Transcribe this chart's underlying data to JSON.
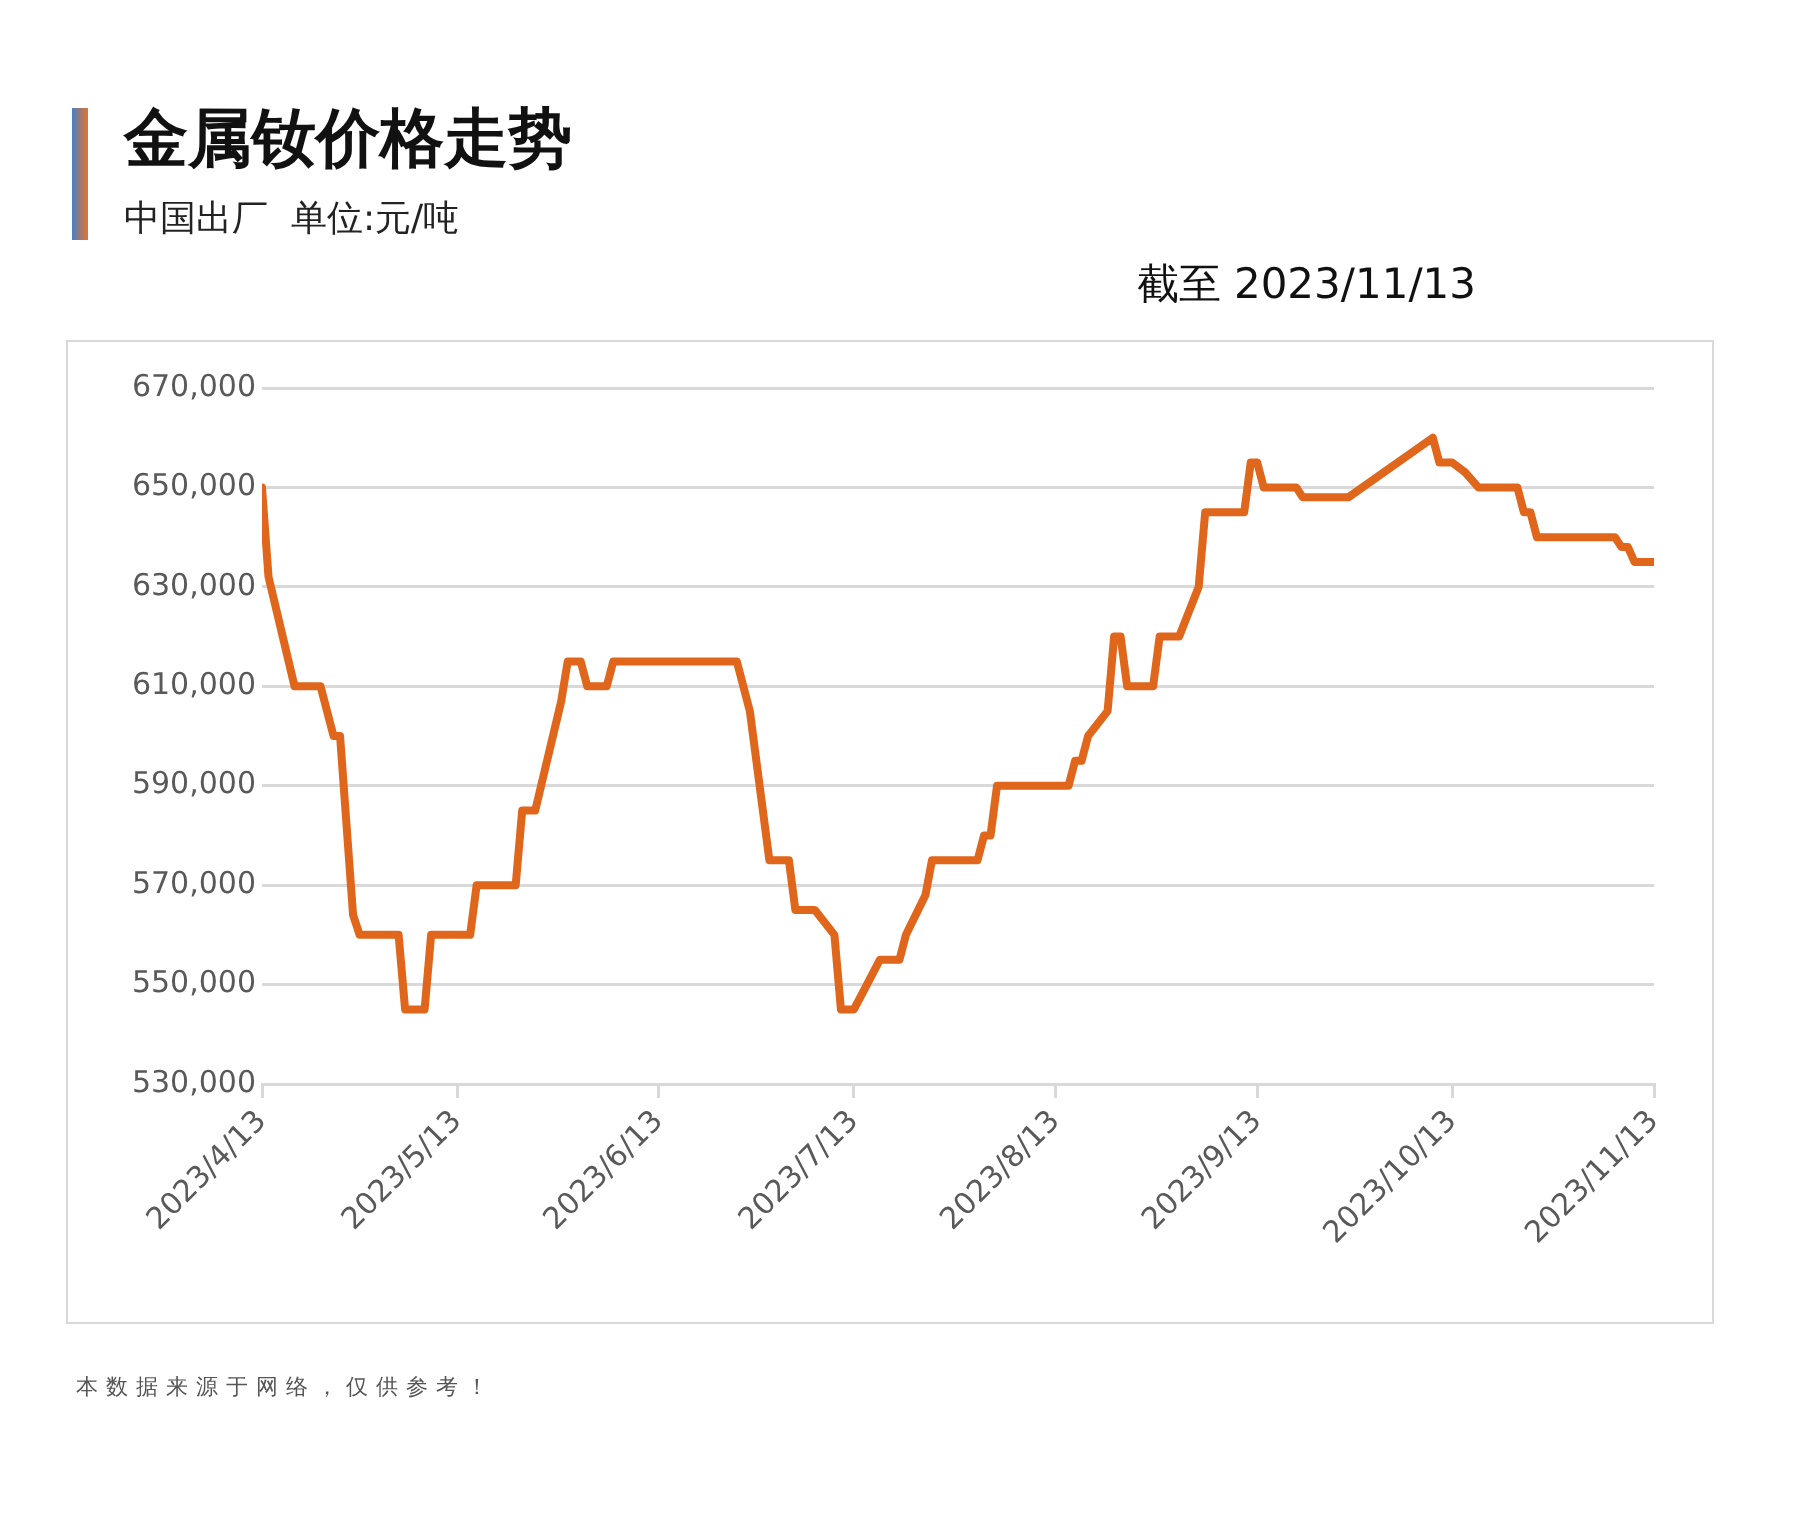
{
  "chart_data": {
    "type": "line",
    "title": "金属钕价格走势",
    "subtitle": "中国出厂  单位:元/吨",
    "annotations": [
      "截至 2023/11/13",
      "本数据来源于网络，仅供参考！"
    ],
    "x": [
      "2023-04-13",
      "2023-04-14",
      "2023-04-18",
      "2023-04-22",
      "2023-04-23",
      "2023-04-24",
      "2023-04-25",
      "2023-04-27",
      "2023-04-28",
      "2023-05-04",
      "2023-05-05",
      "2023-05-08",
      "2023-05-09",
      "2023-05-15",
      "2023-05-16",
      "2023-05-22",
      "2023-05-23",
      "2023-05-25",
      "2023-05-29",
      "2023-05-30",
      "2023-06-01",
      "2023-06-02",
      "2023-06-05",
      "2023-06-06",
      "2023-06-25",
      "2023-06-27",
      "2023-06-30",
      "2023-07-03",
      "2023-07-04",
      "2023-07-07",
      "2023-07-10",
      "2023-07-11",
      "2023-07-13",
      "2023-07-15",
      "2023-07-17",
      "2023-07-20",
      "2023-07-21",
      "2023-07-24",
      "2023-07-25",
      "2023-08-01",
      "2023-08-02",
      "2023-08-03",
      "2023-08-04",
      "2023-08-15",
      "2023-08-16",
      "2023-08-17",
      "2023-08-18",
      "2023-08-21",
      "2023-08-22",
      "2023-08-23",
      "2023-08-24",
      "2023-08-28",
      "2023-08-29",
      "2023-09-01",
      "2023-09-04",
      "2023-09-05",
      "2023-09-11",
      "2023-09-12",
      "2023-09-13",
      "2023-09-14",
      "2023-09-19",
      "2023-09-20",
      "2023-09-27",
      "2023-10-10",
      "2023-10-11",
      "2023-10-13",
      "2023-10-15",
      "2023-10-17",
      "2023-10-23",
      "2023-10-24",
      "2023-10-25",
      "2023-10-26",
      "2023-11-07",
      "2023-11-08",
      "2023-11-09",
      "2023-11-10",
      "2023-11-13"
    ],
    "series": [
      {
        "color": "#e0661c",
        "values": [
          650000,
          632000,
          610000,
          610000,
          605000,
          600000,
          600000,
          564000,
          560000,
          560000,
          545000,
          545000,
          560000,
          560000,
          570000,
          570000,
          585000,
          585000,
          607000,
          615000,
          615000,
          610000,
          610000,
          615000,
          615000,
          605000,
          575000,
          575000,
          565000,
          565000,
          560000,
          545000,
          545000,
          550000,
          555000,
          555000,
          560000,
          568000,
          575000,
          575000,
          580000,
          580000,
          590000,
          590000,
          595000,
          595000,
          600000,
          605000,
          620000,
          620000,
          610000,
          610000,
          620000,
          620000,
          630000,
          645000,
          645000,
          655000,
          655000,
          650000,
          650000,
          648000,
          648000,
          660000,
          655000,
          655000,
          653000,
          650000,
          650000,
          645000,
          645000,
          640000,
          640000,
          638000,
          638000,
          635000,
          635000
        ]
      }
    ],
    "xlim": [
      "2023-04-13",
      "2023-11-13"
    ],
    "xticks": [
      {
        "value": "2023-04-13",
        "label": "2023/4/13"
      },
      {
        "value": "2023-05-13",
        "label": "2023/5/13"
      },
      {
        "value": "2023-06-13",
        "label": "2023/6/13"
      },
      {
        "value": "2023-07-13",
        "label": "2023/7/13"
      },
      {
        "value": "2023-08-13",
        "label": "2023/8/13"
      },
      {
        "value": "2023-09-13",
        "label": "2023/9/13"
      },
      {
        "value": "2023-10-13",
        "label": "2023/10/13"
      },
      {
        "value": "2023-11-13",
        "label": "2023/11/13"
      }
    ],
    "ylim": [
      530000,
      670000
    ],
    "yticks": [
      {
        "value": 530000,
        "label": "530,000"
      },
      {
        "value": 550000,
        "label": "550,000"
      },
      {
        "value": 570000,
        "label": "570,000"
      },
      {
        "value": 590000,
        "label": "590,000"
      },
      {
        "value": 610000,
        "label": "610,000"
      },
      {
        "value": 630000,
        "label": "630,000"
      },
      {
        "value": 650000,
        "label": "650,000"
      },
      {
        "value": 670000,
        "label": "670,000"
      }
    ],
    "grid": "y",
    "legend": false,
    "marker": "none",
    "line_style": "solid"
  }
}
